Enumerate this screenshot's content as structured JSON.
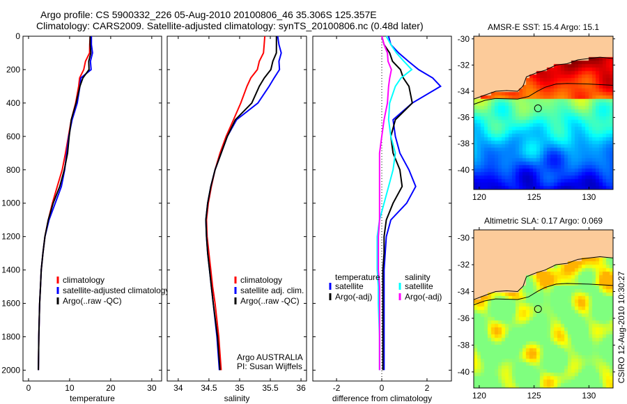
{
  "title_line1": "Argo profile: CS 5900332_226 05-Aug-2010 20100806_46 35.306S 125.357E",
  "title_line2": "Climatology: CARS2009. Satellite-adjusted climatology: synTS_20100806.nc (0.48d later)",
  "credit": "CSIRO 12-Aug-2010 10:30:27",
  "colors": {
    "climatology": "#ff0000",
    "satellite": "#0000ff",
    "argo": "#000000",
    "sal_satellite": "#00ffff",
    "sal_argo": "#ff00ff",
    "land": "#fccb9a"
  },
  "chart_data": [
    {
      "type": "line",
      "name": "temperature",
      "xlabel": "temperature",
      "ylabel": "",
      "xlim": [
        -1.35,
        32.4
      ],
      "ylim": [
        0,
        2065
      ],
      "yreverse": true,
      "xticks": [
        "0",
        "10",
        "20",
        "30"
      ],
      "yticks": [
        "0",
        "200",
        "400",
        "600",
        "800",
        "1000",
        "1200",
        "1400",
        "1600",
        "1800",
        "2000"
      ],
      "depth": [
        0,
        50,
        100,
        150,
        200,
        250,
        300,
        400,
        500,
        600,
        700,
        800,
        900,
        1000,
        1100,
        1200,
        1300,
        1400,
        1500,
        1600,
        1800,
        2000
      ],
      "series": [
        {
          "name": "climatology",
          "color": "#ff0000",
          "values": [
            15.0,
            14.9,
            14.6,
            14.0,
            13.3,
            12.7,
            12.2,
            11.2,
            10.4,
            9.7,
            9.0,
            8.2,
            7.0,
            5.8,
            4.8,
            4.0,
            3.5,
            3.1,
            2.9,
            2.7,
            2.5,
            2.4
          ]
        },
        {
          "name": "satellite-adjusted climatology",
          "color": "#0000ff",
          "values": [
            15.3,
            15.3,
            15.3,
            15.2,
            15.1,
            13.0,
            12.5,
            11.6,
            10.6,
            9.8,
            9.3,
            8.8,
            8.0,
            6.5,
            5.0,
            4.0,
            3.5,
            3.1,
            2.9,
            2.7,
            2.5,
            2.4
          ]
        },
        {
          "name": "Argo(..raw -QC)",
          "color": "#000000",
          "values": [
            15.0,
            15.0,
            14.9,
            14.8,
            14.6,
            13.5,
            12.5,
            11.3,
            10.4,
            9.9,
            9.5,
            8.7,
            7.6,
            6.0,
            4.8,
            4.0,
            3.5,
            3.1,
            2.9,
            2.7,
            2.5,
            2.4
          ]
        }
      ]
    },
    {
      "type": "line",
      "name": "salinity",
      "xlabel": "salinity",
      "ylabel": "",
      "xlim": [
        33.82,
        36.09
      ],
      "ylim": [
        0,
        2065
      ],
      "yreverse": true,
      "xticks": [
        "34",
        "34.5",
        "35",
        "35.5",
        "36"
      ],
      "xtick_values": [
        34,
        34.5,
        35,
        35.5,
        36
      ],
      "depth": [
        0,
        50,
        100,
        150,
        200,
        250,
        300,
        400,
        500,
        600,
        700,
        800,
        900,
        1000,
        1100,
        1200,
        1300,
        1400,
        1500,
        1600,
        1800,
        2000
      ],
      "series": [
        {
          "name": "climatology",
          "color": "#ff0000",
          "values": [
            35.41,
            35.4,
            35.37,
            35.33,
            35.28,
            35.2,
            35.12,
            35.0,
            34.9,
            34.78,
            34.68,
            34.6,
            34.54,
            34.49,
            34.46,
            34.47,
            34.5,
            34.53,
            34.56,
            34.6,
            34.66,
            34.7
          ]
        },
        {
          "name": "satellite adj. clim.",
          "color": "#0000ff",
          "values": [
            35.62,
            35.64,
            35.66,
            35.65,
            35.64,
            35.58,
            35.48,
            35.28,
            34.95,
            34.8,
            34.7,
            34.6,
            34.53,
            34.48,
            34.45,
            34.46,
            34.48,
            34.51,
            34.54,
            34.57,
            34.63,
            34.67
          ]
        },
        {
          "name": "Argo(..raw -QC)",
          "color": "#000000",
          "values": [
            35.6,
            35.6,
            35.58,
            35.55,
            35.5,
            35.42,
            35.32,
            35.18,
            34.93,
            34.8,
            34.7,
            34.6,
            34.53,
            34.48,
            34.45,
            34.46,
            34.48,
            34.51,
            34.54,
            34.57,
            34.64,
            34.68
          ]
        }
      ],
      "annotation": [
        "Argo AUSTRALIA",
        "PI: Susan Wijffels"
      ]
    },
    {
      "type": "line",
      "name": "difference",
      "xlabel": "difference from climatology",
      "ylabel": "",
      "xlim": [
        -3.05,
        3.08
      ],
      "ylim": [
        0,
        2065
      ],
      "yreverse": true,
      "xticks": [
        "-2",
        "0",
        "2"
      ],
      "xtick_values": [
        -2,
        0,
        2
      ],
      "depth": [
        0,
        50,
        100,
        150,
        200,
        250,
        300,
        400,
        500,
        600,
        700,
        800,
        900,
        1000,
        1100,
        1200,
        1300,
        1400,
        1500,
        1600,
        1800,
        2000
      ],
      "legend_headers": [
        "temperature",
        "salinity"
      ],
      "series": [
        {
          "name": "satellite",
          "group": "temperature",
          "color": "#0000ff",
          "values": [
            0.3,
            0.4,
            0.7,
            1.2,
            1.6,
            2.3,
            2.6,
            1.3,
            0.5,
            0.6,
            0.8,
            1.2,
            1.5,
            1.1,
            0.4,
            0.2,
            0.15,
            0.1,
            0.1,
            0.1,
            0.1,
            0.1
          ]
        },
        {
          "name": "Argo(-adj)",
          "group": "temperature",
          "color": "#000000",
          "values": [
            0.0,
            0.1,
            0.3,
            0.5,
            0.8,
            1.0,
            1.2,
            1.3,
            0.6,
            0.4,
            0.5,
            0.8,
            0.9,
            0.5,
            0.2,
            0.1,
            0.1,
            0.05,
            0.05,
            0.05,
            0.05,
            0.05
          ]
        },
        {
          "name": "satellite",
          "group": "salinity",
          "color": "#00ffff",
          "values": [
            0.2,
            0.4,
            0.6,
            1.0,
            1.3,
            0.9,
            0.6,
            0.3,
            0.3,
            0.4,
            0.6,
            0.5,
            0.3,
            0.1,
            -0.1,
            -0.2,
            -0.2,
            -0.2,
            -0.15,
            -0.15,
            -0.1,
            -0.1
          ]
        },
        {
          "name": "Argo(-adj)",
          "group": "salinity",
          "color": "#ff00ff",
          "values": [
            0.0,
            0.1,
            0.2,
            0.3,
            0.4,
            0.4,
            0.3,
            0.2,
            0.1,
            0.0,
            -0.1,
            -0.1,
            -0.1,
            -0.1,
            -0.1,
            -0.15,
            -0.15,
            -0.15,
            -0.1,
            -0.1,
            -0.1,
            -0.1
          ]
        }
      ]
    },
    {
      "type": "heatmap",
      "name": "sst_map",
      "title": "AMSR-E SST: 15.4 Argo: 15.1",
      "xlim": [
        119.5,
        132.2
      ],
      "ylim": [
        -41.5,
        -29.8
      ],
      "xticks": [
        "120",
        "125",
        "130"
      ],
      "xtick_values": [
        120,
        125,
        130
      ],
      "yticks": [
        "-30",
        "-32",
        "-34",
        "-36",
        "-38",
        "-40"
      ],
      "ytick_values": [
        -30,
        -32,
        -34,
        -36,
        -38,
        -40
      ],
      "argo_position": [
        125.357,
        -35.306
      ]
    },
    {
      "type": "heatmap",
      "name": "sla_map",
      "title": "Altimetric SLA: 0.17 Argo: 0.069",
      "xlim": [
        119.5,
        132.2
      ],
      "ylim": [
        -41.2,
        -29.4
      ],
      "xticks": [
        "120",
        "125",
        "130"
      ],
      "xtick_values": [
        120,
        125,
        130
      ],
      "yticks": [
        "-30",
        "-32",
        "-34",
        "-36",
        "-38",
        "-40"
      ],
      "ytick_values": [
        -30,
        -32,
        -34,
        -36,
        -38,
        -40
      ],
      "argo_position": [
        125.357,
        -35.306
      ]
    }
  ]
}
